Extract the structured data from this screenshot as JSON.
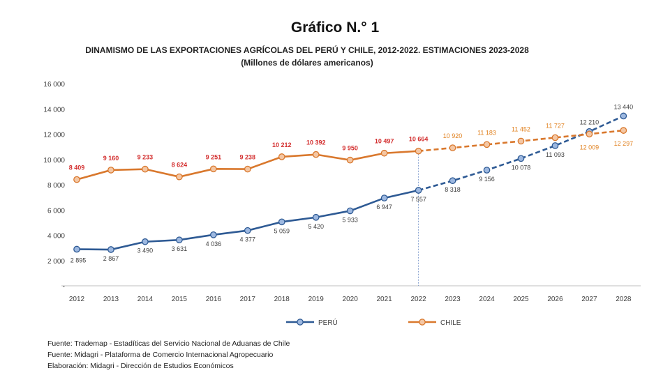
{
  "heading": "Gráfico N.° 1",
  "chart_data": {
    "type": "line",
    "title": "DINAMISMO DE LAS EXPORTACIONES AGRÍCOLAS DEL PERÚ Y CHILE, 2012-2022. ESTIMACIONES 2023-2028",
    "subtitle": "(Millones de dólares americanos)",
    "xlabel": "",
    "ylabel": "",
    "ylim": [
      0,
      16000
    ],
    "yticks": [
      0,
      2000,
      4000,
      6000,
      8000,
      10000,
      12000,
      14000,
      16000
    ],
    "ytick_labels": [
      "-",
      "2 000",
      "4 000",
      "6 000",
      "8 000",
      "10 000",
      "12 000",
      "14 000",
      "16 000"
    ],
    "grid": false,
    "legend": "bottom",
    "x": [
      "2012",
      "2013",
      "2014",
      "2015",
      "2016",
      "2017",
      "2018",
      "2019",
      "2020",
      "2021",
      "2022",
      "2023",
      "2024",
      "2025",
      "2026",
      "2027",
      "2028"
    ],
    "estimate_from": "2022",
    "series": [
      {
        "name": "PERÚ",
        "color": "#2e5a94",
        "marker_fill": "#9db8e0",
        "label_color": "#404040",
        "values": [
          2895,
          2867,
          3490,
          3631,
          4036,
          4377,
          5059,
          5420,
          5933,
          6947,
          7557,
          8318,
          9156,
          10078,
          11093,
          12210,
          13440
        ],
        "labels": [
          "2 895",
          "2 867",
          "3 490",
          "3 631",
          "4 036",
          "4 377",
          "5 059",
          "5 420",
          "5 933",
          "6 947",
          "7 557",
          "8 318",
          "9 156",
          "10 078",
          "11 093",
          "12 210",
          "13 440"
        ]
      },
      {
        "name": "CHILE",
        "color": "#d9782d",
        "marker_fill": "#f4c7a4",
        "label_color": "#d32f2f",
        "label_color_estimate": "#e0801e",
        "values": [
          8409,
          9160,
          9233,
          8624,
          9251,
          9238,
          10212,
          10392,
          9950,
          10497,
          10664,
          10920,
          11183,
          11452,
          11727,
          12009,
          12297
        ],
        "labels": [
          "8 409",
          "9 160",
          "9 233",
          "8 624",
          "9 251",
          "9 238",
          "10 212",
          "10 392",
          "9 950",
          "10 497",
          "10 664",
          "10 920",
          "11 183",
          "11 452",
          "11 727",
          "12 009",
          "12 297"
        ]
      }
    ]
  },
  "sources": [
    "Fuente: Trademap - Estadíticas del Servicio Nacional de Aduanas de Chile",
    "Fuente: Midagri - Plataforma de Comercio Internacional Agropecuario",
    "Elaboración: Midagri - Dirección de Estudios Económicos"
  ]
}
